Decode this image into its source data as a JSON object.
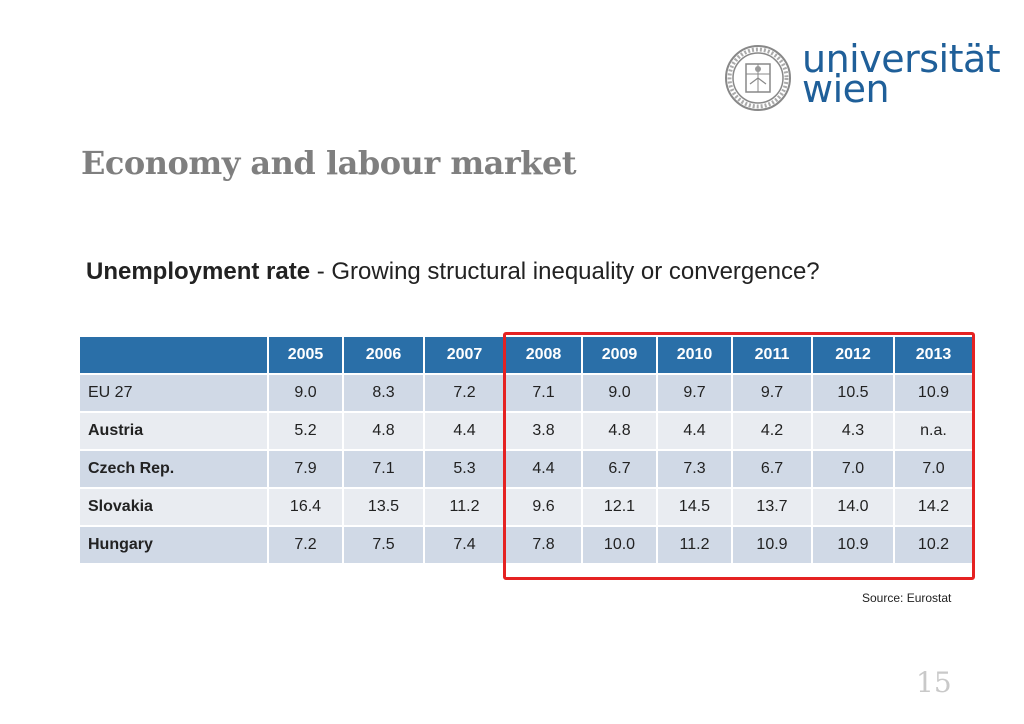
{
  "logo": {
    "line1": "universität",
    "line2": "wien"
  },
  "title": "Economy and labour market",
  "subtitle": {
    "bold": "Unemployment rate",
    "rest": " - Growing structural inequality or convergence?"
  },
  "table": {
    "years": [
      "2005",
      "2006",
      "2007",
      "2008",
      "2009",
      "2010",
      "2011",
      "2012",
      "2013"
    ],
    "rows": [
      {
        "country": "EU 27",
        "values": [
          "9.0",
          "8.3",
          "7.2",
          "7.1",
          "9.0",
          "9.7",
          "9.7",
          "10.5",
          "10.9"
        ]
      },
      {
        "country": "Austria",
        "values": [
          "5.2",
          "4.8",
          "4.4",
          "3.8",
          "4.8",
          "4.4",
          "4.2",
          "4.3",
          "n.a."
        ]
      },
      {
        "country": "Czech Rep.",
        "values": [
          "7.9",
          "7.1",
          "5.3",
          "4.4",
          "6.7",
          "7.3",
          "6.7",
          "7.0",
          "7.0"
        ]
      },
      {
        "country": "Slovakia",
        "values": [
          "16.4",
          "13.5",
          "11.2",
          "9.6",
          "12.1",
          "14.5",
          "13.7",
          "14.0",
          "14.2"
        ]
      },
      {
        "country": "Hungary",
        "values": [
          "7.2",
          "7.5",
          "7.4",
          "7.8",
          "10.0",
          "11.2",
          "10.9",
          "10.9",
          "10.2"
        ]
      }
    ]
  },
  "source": "Source: Eurostat",
  "page_number": "15",
  "colors": {
    "header": "#2a6fa8",
    "highlight": "#e52222",
    "brand": "#1f5f99"
  }
}
